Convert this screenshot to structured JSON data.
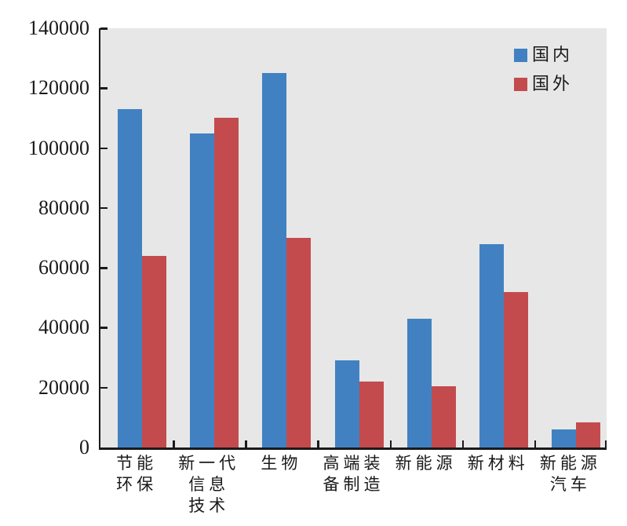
{
  "chart": {
    "background": "#ffffff",
    "plot_background": "#E7E7E7",
    "axis_color": "#1a1a1a",
    "text_color": "#1a1a1a"
  },
  "chart_data": {
    "type": "bar",
    "title": "",
    "xlabel": "",
    "ylabel": "",
    "categories": [
      "节能环保",
      "新一代信息技术",
      "生物",
      "高端装备制造",
      "新能源",
      "新材料",
      "新能源汽车"
    ],
    "category_label_lines": [
      [
        "节能",
        "环保"
      ],
      [
        "新一代",
        "信息",
        "技术"
      ],
      [
        "生物"
      ],
      [
        "高端装",
        "备制造"
      ],
      [
        "新能源"
      ],
      [
        "新材料"
      ],
      [
        "新能源",
        "汽车"
      ]
    ],
    "series": [
      {
        "name": "国内",
        "color": "#4181C2",
        "values": [
          113000,
          105000,
          125000,
          29000,
          43000,
          68000,
          6000
        ]
      },
      {
        "name": "国外",
        "color": "#C34B4D",
        "values": [
          64000,
          110000,
          70000,
          22000,
          20500,
          52000,
          8500
        ]
      }
    ],
    "ylim": [
      0,
      140000
    ],
    "yticks": [
      0,
      20000,
      40000,
      60000,
      80000,
      100000,
      120000,
      140000
    ],
    "grid": false,
    "legend_position": "upper right"
  }
}
